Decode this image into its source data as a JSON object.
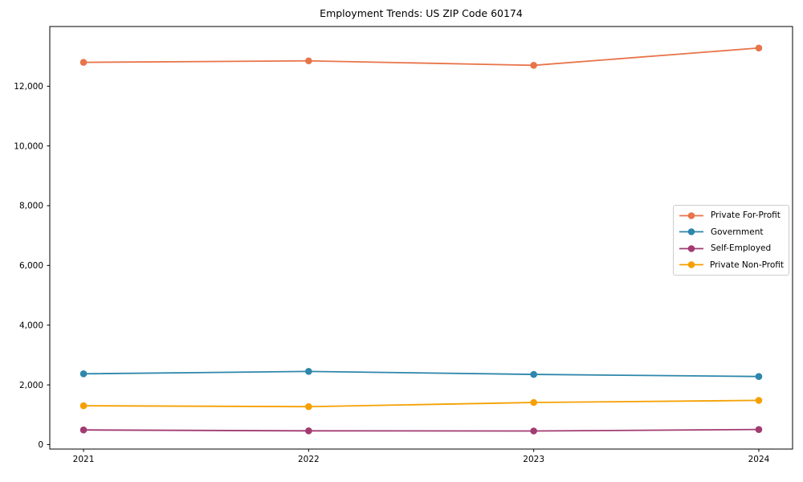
{
  "chart_data": {
    "type": "line",
    "title": "Employment Trends: US ZIP Code 60174",
    "xlabel": "",
    "ylabel": "",
    "grid": false,
    "legend_position": "center right",
    "xlim": [
      2020.85,
      2024.15
    ],
    "ylim": [
      -150,
      14000
    ],
    "x": [
      2021,
      2022,
      2023,
      2024
    ],
    "xticks": {
      "values": [
        2021,
        2022,
        2023,
        2024
      ],
      "labels": [
        "2021",
        "2022",
        "2023",
        "2024"
      ]
    },
    "yticks": {
      "values": [
        0,
        2000,
        4000,
        6000,
        8000,
        10000,
        12000
      ],
      "labels": [
        "0",
        "2,000",
        "4,000",
        "6,000",
        "8,000",
        "10,000",
        "12,000"
      ]
    },
    "series": [
      {
        "name": "Private For-Profit",
        "color": "#e8744a",
        "values": [
          12800,
          12850,
          12700,
          13280
        ]
      },
      {
        "name": "Government",
        "color": "#2e86ab",
        "values": [
          2370,
          2450,
          2350,
          2280
        ]
      },
      {
        "name": "Self-Employed",
        "color": "#a23b72",
        "values": [
          490,
          460,
          455,
          505
        ]
      },
      {
        "name": "Private Non-Profit",
        "color": "#f5a002",
        "values": [
          1300,
          1270,
          1410,
          1480
        ]
      }
    ],
    "colors": {
      "spine": "#000000",
      "tick_text": "#000000",
      "legend_border": "#cccccc",
      "background": "#ffffff"
    }
  }
}
